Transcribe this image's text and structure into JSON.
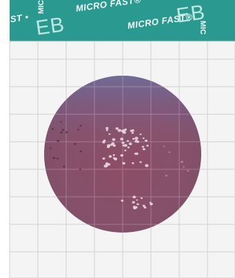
{
  "banner": {
    "brand_text_1": "AST •",
    "brand_text_2": "MICRO FAST®",
    "brand_text_3": "MICRO FAST®",
    "brand_mark_1": "EB",
    "brand_mark_2": "EB",
    "vertical_1": "MIC",
    "vertical_2": "MIC",
    "tail": "MIC"
  },
  "colors": {
    "banner_bg": "#2a9a90",
    "grid_bg": "#f4f4f4",
    "grid_line": "#c8c8c8",
    "medium_top": "#7a6f9a",
    "medium_main": "#8a5168",
    "colony": "#e4d6dc"
  }
}
